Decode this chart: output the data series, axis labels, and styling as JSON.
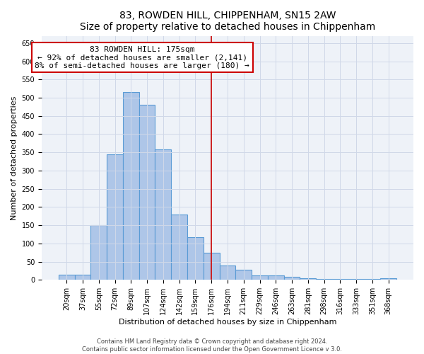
{
  "title_line1": "83, ROWDEN HILL, CHIPPENHAM, SN15 2AW",
  "title_line2": "Size of property relative to detached houses in Chippenham",
  "xlabel": "Distribution of detached houses by size in Chippenham",
  "ylabel": "Number of detached properties",
  "bar_labels": [
    "20sqm",
    "37sqm",
    "55sqm",
    "72sqm",
    "89sqm",
    "107sqm",
    "124sqm",
    "142sqm",
    "159sqm",
    "176sqm",
    "194sqm",
    "211sqm",
    "229sqm",
    "246sqm",
    "263sqm",
    "281sqm",
    "298sqm",
    "316sqm",
    "333sqm",
    "351sqm",
    "368sqm"
  ],
  "bar_values": [
    15,
    15,
    150,
    345,
    515,
    480,
    358,
    180,
    118,
    75,
    40,
    28,
    12,
    12,
    8,
    5,
    3,
    3,
    3,
    3,
    5
  ],
  "bar_color": "#aec6e8",
  "bar_edge_color": "#5a9bd5",
  "bar_edge_width": 0.8,
  "property_line_index": 9,
  "property_line_color": "#cc0000",
  "annotation_line1": "83 ROWDEN HILL: 175sqm",
  "annotation_line2": "← 92% of detached houses are smaller (2,141)",
  "annotation_line3": "8% of semi-detached houses are larger (180) →",
  "annotation_box_color": "#ffffff",
  "annotation_box_edge_color": "#cc0000",
  "annotation_box_edge_width": 1.5,
  "ylim": [
    0,
    670
  ],
  "yticks": [
    0,
    50,
    100,
    150,
    200,
    250,
    300,
    350,
    400,
    450,
    500,
    550,
    600,
    650
  ],
  "grid_color": "#d0d8e8",
  "background_color": "#eef2f8",
  "title_fontsize": 10,
  "xlabel_fontsize": 8,
  "ylabel_fontsize": 8,
  "tick_fontsize": 7,
  "annotation_fontsize": 8,
  "footer_text": "Contains HM Land Registry data © Crown copyright and database right 2024.\nContains public sector information licensed under the Open Government Licence v 3.0.",
  "footer_fontsize": 6
}
